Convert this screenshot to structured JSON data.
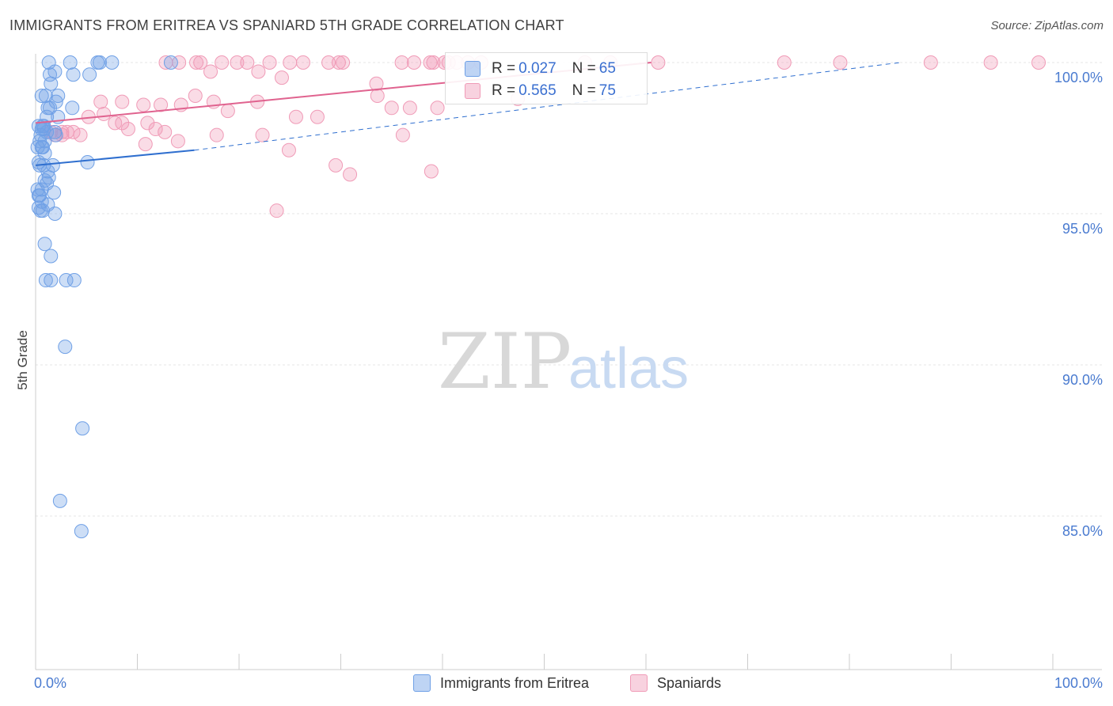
{
  "header": {
    "title": "IMMIGRANTS FROM ERITREA VS SPANIARD 5TH GRADE CORRELATION CHART",
    "source": "Source: ZipAtlas.com"
  },
  "watermark": {
    "zip": "ZIP",
    "atlas": "atlas"
  },
  "stats": [
    {
      "r_label": "R = ",
      "r_value": "0.027",
      "n_label": "N = ",
      "n_value": "65"
    },
    {
      "r_label": "R = ",
      "r_value": "0.565",
      "n_label": "N = ",
      "n_value": "75"
    }
  ],
  "legend": {
    "eritrea": "Immigrants from Eritrea",
    "spaniards": "Spaniards"
  },
  "chart_data": {
    "type": "scatter",
    "title": "IMMIGRANTS FROM ERITREA VS SPANIARD 5TH GRADE CORRELATION CHART",
    "xlabel": "",
    "ylabel": "5th Grade",
    "xlim": [
      0,
      100
    ],
    "ylim": [
      80.5,
      100.8
    ],
    "x_tick_labels": [
      "0.0%",
      "100.0%"
    ],
    "y_ticks": [
      85,
      90,
      95,
      100
    ],
    "y_tick_labels": [
      "85.0%",
      "90.0%",
      "95.0%",
      "100.0%"
    ],
    "grid": true,
    "colors": {
      "eritrea": "#6fa0e6",
      "eritrea_line": "#2f6fcf",
      "spaniards": "#f09bb7",
      "spaniards_line": "#e0638f",
      "axis_text": "#4a7bd0"
    },
    "series": [
      {
        "name": "Immigrants from Eritrea",
        "color": "#6fa0e6",
        "x": [
          1.3,
          3.4,
          6.1,
          7.5,
          6.3,
          5.3,
          1.4,
          3.7,
          1.9,
          1.5,
          0.6,
          1.0,
          2.2,
          3.6,
          1.2,
          1.4,
          2.0,
          1.1,
          2.2,
          0.8,
          0.6,
          0.3,
          0.7,
          0.8,
          1.1,
          1.9,
          0.4,
          2.0,
          0.5,
          0.9,
          0.6,
          0.2,
          0.7,
          0.9,
          5.1,
          0.3,
          0.8,
          1.7,
          0.4,
          1.2,
          1.3,
          0.9,
          1.1,
          1.8,
          0.3,
          0.6,
          0.4,
          0.6,
          0.2,
          1.2,
          0.5,
          0.9,
          1.5,
          0.3,
          0.7,
          1.9,
          1.0,
          1.5,
          3.0,
          3.8,
          2.9,
          4.6,
          2.4,
          4.5,
          13.3
        ],
        "y": [
          100.0,
          100.0,
          100.0,
          100.0,
          100.0,
          99.6,
          99.6,
          99.6,
          99.7,
          99.3,
          98.9,
          98.9,
          98.9,
          98.5,
          98.5,
          98.5,
          98.7,
          98.2,
          98.2,
          97.8,
          97.8,
          97.9,
          97.9,
          97.9,
          97.7,
          97.7,
          97.4,
          97.6,
          97.6,
          97.4,
          97.2,
          97.2,
          97.2,
          97.0,
          96.7,
          96.7,
          96.6,
          96.6,
          96.6,
          96.4,
          96.2,
          96.1,
          96.0,
          95.7,
          95.6,
          95.4,
          95.6,
          95.8,
          95.8,
          95.3,
          95.1,
          94.0,
          93.6,
          95.2,
          95.1,
          95.0,
          92.8,
          92.8,
          92.8,
          92.8,
          90.6,
          87.9,
          85.5,
          84.5,
          100.0
        ],
        "trend": {
          "x": [
            0,
            15.6
          ],
          "y": [
            96.6,
            97.1
          ],
          "extended_x": [
            15.6,
            85
          ],
          "extended_y": [
            97.1,
            100.0
          ]
        }
      },
      {
        "name": "Spaniards",
        "color": "#f09bb7",
        "x": [
          12.8,
          14.1,
          15.8,
          16.2,
          17.2,
          18.3,
          19.8,
          20.8,
          21.9,
          23.0,
          24.2,
          25.0,
          26.3,
          28.8,
          29.8,
          30.2,
          33.5,
          36.0,
          37.2,
          38.8,
          39.1,
          40.2,
          40.6,
          41.4,
          42.5,
          43.8,
          47.4,
          54.0,
          56.5,
          61.2,
          73.6,
          79.1,
          88.0,
          93.9,
          98.6,
          6.4,
          8.5,
          10.6,
          12.3,
          14.3,
          15.7,
          17.5,
          18.9,
          21.8,
          25.6,
          27.7,
          33.6,
          35.0,
          36.8,
          39.5,
          7.8,
          11.0,
          8.5,
          5.2,
          6.7,
          9.1,
          11.8,
          12.7,
          14.0,
          17.8,
          22.3,
          3.1,
          3.7,
          4.4,
          1.5,
          1.9,
          2.6,
          24.9,
          29.5,
          23.7,
          30.9,
          36.1,
          38.9,
          10.8,
          2.6
        ],
        "y": [
          100.0,
          100.0,
          100.0,
          100.0,
          99.7,
          100.0,
          100.0,
          100.0,
          99.7,
          100.0,
          99.5,
          100.0,
          100.0,
          100.0,
          100.0,
          100.0,
          99.3,
          100.0,
          100.0,
          100.0,
          100.0,
          100.0,
          100.0,
          100.0,
          100.0,
          100.0,
          98.8,
          100.0,
          100.0,
          100.0,
          100.0,
          100.0,
          100.0,
          100.0,
          100.0,
          98.7,
          98.7,
          98.6,
          98.6,
          98.6,
          98.9,
          98.7,
          98.4,
          98.7,
          98.2,
          98.2,
          98.9,
          98.5,
          98.5,
          98.5,
          98.0,
          98.0,
          98.0,
          98.2,
          98.3,
          97.8,
          97.8,
          97.7,
          97.4,
          97.6,
          97.6,
          97.7,
          97.7,
          97.6,
          97.7,
          97.6,
          97.7,
          97.1,
          96.6,
          95.1,
          96.3,
          97.6,
          96.4,
          97.3,
          97.6
        ],
        "trend": {
          "x": [
            0,
            60.5
          ],
          "y": [
            98.0,
            100.0
          ]
        }
      }
    ]
  }
}
